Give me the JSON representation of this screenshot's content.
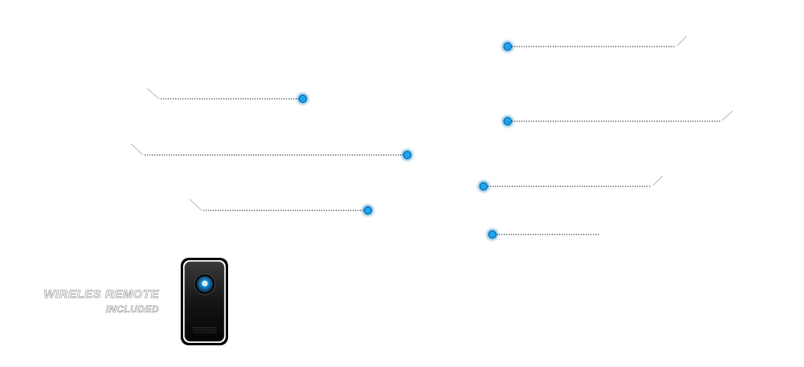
{
  "remote": {
    "caption_line1": "WIRELES REMOTE",
    "caption_line2": "INCLUDED",
    "icon": "remote-control-icon"
  },
  "colors": {
    "dot_fill": "#1aa3f0",
    "dot_glow": "#5cc8ff",
    "leader_line": "#333333",
    "slant_line": "#bbbbbb",
    "caption_stroke": "#8a8a8a"
  },
  "callouts": [
    {
      "id": "left-1",
      "label": ""
    },
    {
      "id": "left-2",
      "label": ""
    },
    {
      "id": "left-3",
      "label": ""
    },
    {
      "id": "right-1",
      "label": ""
    },
    {
      "id": "right-2",
      "label": ""
    },
    {
      "id": "right-3",
      "label": ""
    },
    {
      "id": "right-4",
      "label": ""
    }
  ]
}
